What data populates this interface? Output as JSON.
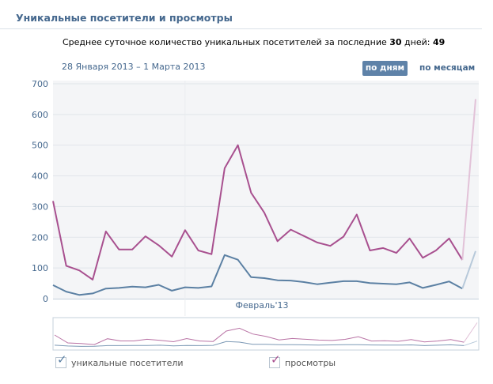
{
  "header": {
    "title": "Уникальные посетители и просмотры"
  },
  "summary": {
    "prefix": "Среднее суточное количество уникальных посетителей за последние ",
    "days_value": "30",
    "middle": " дней: ",
    "avg_value": "49"
  },
  "date_range": "28 Января 2013 – 1 Марта 2013",
  "controls": {
    "by_days": "по дням",
    "by_months": "по месяцам"
  },
  "colors": {
    "visitors": "#5b80a3",
    "views": "#a8508f",
    "visitors_faded": "#b7c9da",
    "views_faded": "#e2c2d8"
  },
  "chart_data": {
    "type": "line",
    "x_label": "Февраль'13",
    "ylim": [
      0,
      700
    ],
    "y_ticks": [
      "0",
      "100",
      "200",
      "300",
      "400",
      "500",
      "600",
      "700"
    ],
    "grid": true,
    "legend_position": "bottom",
    "series": [
      {
        "name": "уникальные посетители",
        "values": [
          44,
          23,
          12,
          17,
          33,
          35,
          39,
          37,
          45,
          26,
          37,
          35,
          40,
          142,
          127,
          70,
          67,
          60,
          59,
          54,
          47,
          52,
          57,
          57,
          51,
          49,
          47,
          53,
          35,
          45,
          56,
          33,
          155
        ]
      },
      {
        "name": "просмотры",
        "values": [
          318,
          107,
          92,
          62,
          219,
          160,
          160,
          203,
          174,
          137,
          223,
          157,
          145,
          425,
          500,
          345,
          280,
          187,
          225,
          204,
          183,
          172,
          202,
          274,
          157,
          165,
          149,
          196,
          133,
          157,
          196,
          126,
          650
        ]
      }
    ]
  },
  "legend": {
    "visitors_label": "уникальные посетители",
    "views_label": "просмотры"
  }
}
